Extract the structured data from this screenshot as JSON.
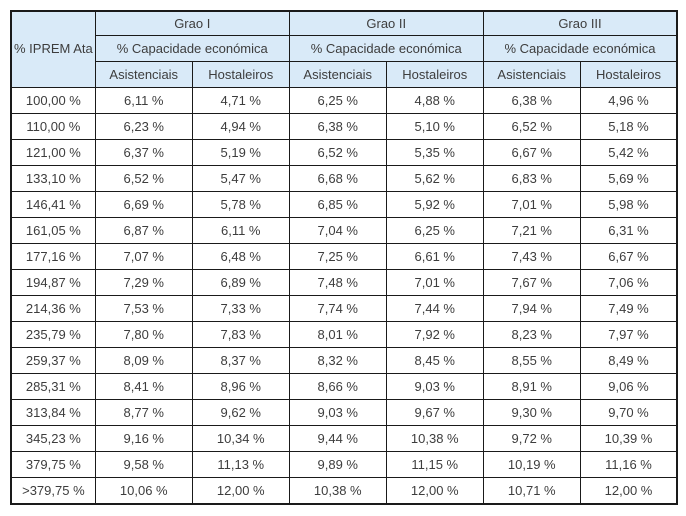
{
  "table": {
    "corner_label": "% IPREM Ata",
    "groups": [
      {
        "label": "Grao I",
        "sublabel": "% Capacidade económica"
      },
      {
        "label": "Grao II",
        "sublabel": "% Capacidade económica"
      },
      {
        "label": "Grao III",
        "sublabel": "% Capacidade económica"
      }
    ],
    "col_headers": [
      "Asistenciais",
      "Hostaleiros"
    ],
    "rows": [
      [
        "100,00 %",
        "6,11 %",
        "4,71 %",
        "6,25 %",
        "4,88 %",
        "6,38 %",
        "4,96 %"
      ],
      [
        "110,00 %",
        "6,23 %",
        "4,94 %",
        "6,38 %",
        "5,10 %",
        "6,52 %",
        "5,18 %"
      ],
      [
        "121,00 %",
        "6,37 %",
        "5,19 %",
        "6,52 %",
        "5,35 %",
        "6,67 %",
        "5,42 %"
      ],
      [
        "133,10 %",
        "6,52 %",
        "5,47 %",
        "6,68 %",
        "5,62 %",
        "6,83 %",
        "5,69 %"
      ],
      [
        "146,41 %",
        "6,69 %",
        "5,78 %",
        "6,85 %",
        "5,92 %",
        "7,01 %",
        "5,98 %"
      ],
      [
        "161,05 %",
        "6,87 %",
        "6,11 %",
        "7,04 %",
        "6,25 %",
        "7,21 %",
        "6,31 %"
      ],
      [
        "177,16 %",
        "7,07 %",
        "6,48 %",
        "7,25 %",
        "6,61 %",
        "7,43 %",
        "6,67 %"
      ],
      [
        "194,87 %",
        "7,29 %",
        "6,89 %",
        "7,48 %",
        "7,01 %",
        "7,67 %",
        "7,06 %"
      ],
      [
        "214,36 %",
        "7,53 %",
        "7,33 %",
        "7,74 %",
        "7,44 %",
        "7,94 %",
        "7,49 %"
      ],
      [
        "235,79 %",
        "7,80 %",
        "7,83 %",
        "8,01 %",
        "7,92 %",
        "8,23 %",
        "7,97 %"
      ],
      [
        "259,37 %",
        "8,09 %",
        "8,37 %",
        "8,32 %",
        "8,45 %",
        "8,55 %",
        "8,49 %"
      ],
      [
        "285,31 %",
        "8,41 %",
        "8,96 %",
        "8,66 %",
        "9,03 %",
        "8,91 %",
        "9,06 %"
      ],
      [
        "313,84 %",
        "8,77 %",
        "9,62 %",
        "9,03 %",
        "9,67 %",
        "9,30 %",
        "9,70 %"
      ],
      [
        "345,23 %",
        "9,16 %",
        "10,34 %",
        "9,44 %",
        "10,38 %",
        "9,72 %",
        "10,39 %"
      ],
      [
        "379,75 %",
        "9,58 %",
        "11,13 %",
        "9,89 %",
        "11,15 %",
        "10,19 %",
        "11,16 %"
      ],
      [
        ">379,75 %",
        "10,06 %",
        "12,00 %",
        "10,38 %",
        "12,00 %",
        "10,71 %",
        "12,00 %"
      ]
    ]
  },
  "colors": {
    "header_bg": "#d9eaf8",
    "border": "#1a1a1a",
    "text": "#3d3d3d",
    "page_bg": "#ffffff"
  }
}
